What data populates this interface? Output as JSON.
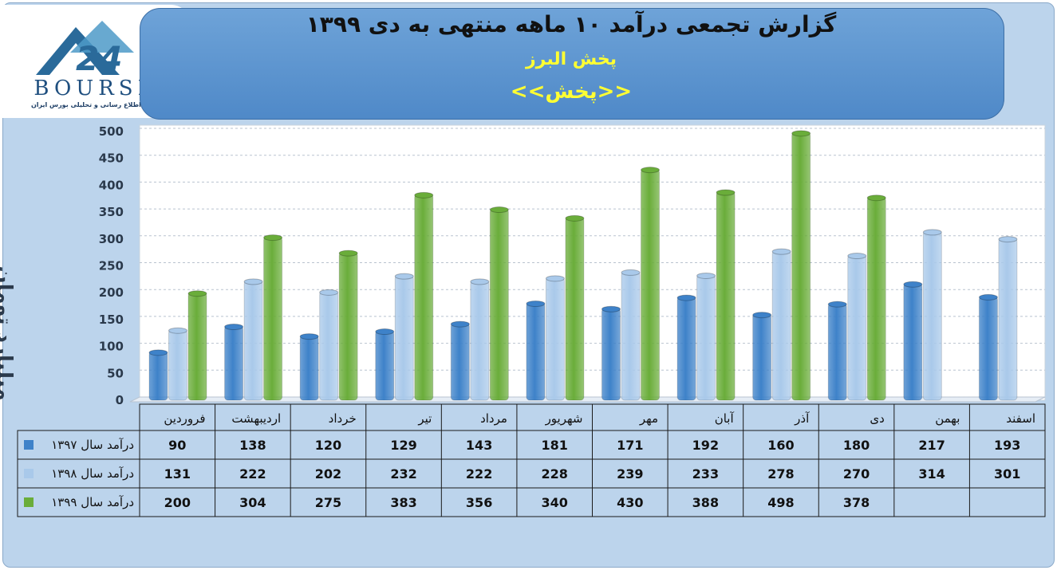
{
  "header": {
    "title": "گزارش تجمعی درآمد ۱۰ ماهه منتهی به دی ۱۳۹۹",
    "company": "پخش البرز",
    "symbol": "<<پخش>>"
  },
  "logo": {
    "brand": "BOURSE",
    "number": "24",
    "tagline": "پایگاه اطلاع رسانی و تحلیلی بورس ایران"
  },
  "colors": {
    "series1": "#3e82c9",
    "series2": "#a9c9ea",
    "series3": "#6aad3a"
  },
  "chart_data": {
    "type": "bar",
    "title": "گزارش تجمعی درآمد ۱۰ ماهه منتهی به دی ۱۳۹۹",
    "ylabel": "میلیارد تومان",
    "ylim": [
      0,
      500
    ],
    "yticks": [
      0,
      50,
      100,
      150,
      200,
      250,
      300,
      350,
      400,
      450,
      500
    ],
    "grid": true,
    "legend": "table-rows",
    "categories": [
      "فروردین",
      "اردیبهشت",
      "خرداد",
      "تیر",
      "مرداد",
      "شهریور",
      "مهر",
      "آبان",
      "آذر",
      "دی",
      "بهمن",
      "اسفند"
    ],
    "series": [
      {
        "name": "درآمد سال ۱۳۹۷",
        "values": [
          90,
          138,
          120,
          129,
          143,
          181,
          171,
          192,
          160,
          180,
          217,
          193
        ]
      },
      {
        "name": "درآمد سال ۱۳۹۸",
        "values": [
          131,
          222,
          202,
          232,
          222,
          228,
          239,
          233,
          278,
          270,
          314,
          301
        ]
      },
      {
        "name": "درآمد سال ۱۳۹۹",
        "values": [
          200,
          304,
          275,
          383,
          356,
          340,
          430,
          388,
          498,
          378,
          null,
          null
        ]
      }
    ]
  }
}
